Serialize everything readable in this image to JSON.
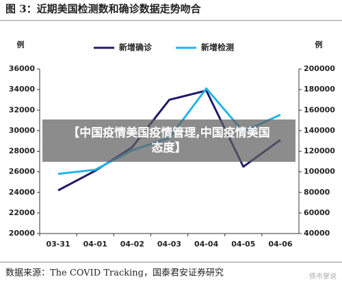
{
  "chart_data": {
    "type": "line",
    "title": "图 3：近期美国检测数和确诊数据走势吻合",
    "ylabel": "例",
    "y2label": "例",
    "categories": [
      "03-31",
      "04-01",
      "04-02",
      "04-03",
      "04-04",
      "04-05",
      "04-06"
    ],
    "series": [
      {
        "name": "新增确诊",
        "color": "#1f1a6b",
        "values": [
          24200,
          26100,
          28400,
          33000,
          33900,
          26500,
          29100
        ]
      },
      {
        "name": "新增检测",
        "color": "#22b4e8",
        "axis": "y2",
        "values": [
          98000,
          102000,
          121000,
          133000,
          181000,
          139000,
          155500
        ]
      }
    ],
    "ylim": [
      20000,
      36000
    ],
    "yticks": [
      20000,
      22000,
      24000,
      26000,
      28000,
      30000,
      32000,
      34000,
      36000
    ],
    "y2lim": [
      40000,
      200000
    ],
    "y2ticks": [
      40000,
      60000,
      80000,
      100000,
      120000,
      140000,
      160000,
      180000,
      200000
    ],
    "legend": "top",
    "grid": false,
    "source": "数据来源：The COVID Tracking，国泰君安证券研究"
  },
  "overlay_text": "【中国疫情美国疫情管理,中国疫情美国态度】",
  "watermark": "债市掌说"
}
